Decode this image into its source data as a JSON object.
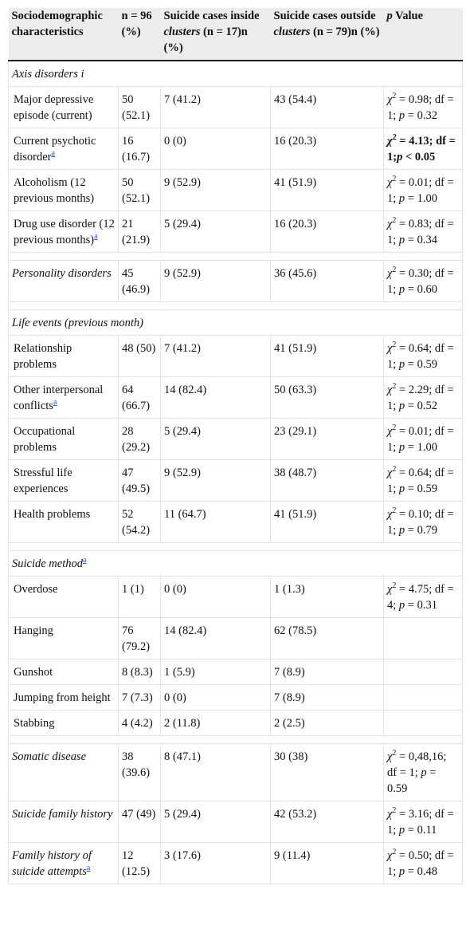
{
  "header": [
    [
      "Sociodemographic characteristics"
    ],
    [
      "n = 96 (%)"
    ],
    [
      "Suicide cases inside ",
      {
        "t": "clusters",
        "s": "i"
      },
      " (n = 17)n (%)"
    ],
    [
      "Suicide cases outside ",
      {
        "t": "clusters",
        "s": "i"
      },
      " (n = 79)n (%)"
    ],
    [
      {
        "t": "p",
        "s": "i"
      },
      " Value"
    ]
  ],
  "groups": [
    {
      "section": [
        {
          "t": "Axis disorders i",
          "s": "i"
        }
      ],
      "rows": [
        {
          "cells": [
            [
              "Major depressive episode (current)"
            ],
            "50 (52.1)",
            "7 (41.2)",
            "43 (54.4)",
            [
              {
                "t": "χ",
                "s": "i"
              },
              {
                "t": "2",
                "s": "sup"
              },
              " = 0.98; df = 1; ",
              {
                "t": "p",
                "s": "i"
              },
              " = 0.32"
            ]
          ]
        },
        {
          "cells": [
            [
              "Current psychotic disorder",
              {
                "t": "a",
                "s": "link"
              }
            ],
            "16 (16.7)",
            "0 (0)",
            "16 (20.3)",
            [
              {
                "t": "χ",
                "s": "b i"
              },
              {
                "t": "2",
                "s": "b sup"
              },
              {
                "t": " = 4.13; df = 1;",
                "s": "b"
              },
              {
                "t": "p",
                "s": "b i"
              },
              {
                "t": " < 0.05",
                "s": "b"
              }
            ]
          ]
        },
        {
          "cells": [
            [
              "Alcoholism (12 previous months)"
            ],
            "50 (52.1)",
            "9 (52.9)",
            "41 (51.9)",
            [
              {
                "t": "χ",
                "s": "i"
              },
              {
                "t": "2",
                "s": "sup"
              },
              " = 0.01; df = 1; ",
              {
                "t": "p",
                "s": "i"
              },
              " = 1.00"
            ]
          ]
        },
        {
          "cells": [
            [
              "Drug use disorder (12 previous months)",
              {
                "t": "a",
                "s": "link"
              }
            ],
            "21 (21.9)",
            "5 (29.4)",
            "16 (20.3)",
            [
              {
                "t": "χ",
                "s": "i"
              },
              {
                "t": "2",
                "s": "sup"
              },
              " = 0.83; df = 1; ",
              {
                "t": "p",
                "s": "i"
              },
              " = 0.34"
            ]
          ]
        }
      ]
    },
    {
      "rows": [
        {
          "cells": [
            [
              {
                "t": "Personality disorders",
                "s": "i"
              }
            ],
            "45 (46.9)",
            "9 (52.9)",
            "36 (45.6)",
            [
              {
                "t": "χ",
                "s": "i"
              },
              {
                "t": "2",
                "s": "sup"
              },
              " = 0.30; df = 1; ",
              {
                "t": "p",
                "s": "i"
              },
              " = 0.60"
            ]
          ]
        }
      ]
    },
    {
      "section": [
        {
          "t": "Life events (previous month)",
          "s": "i"
        }
      ],
      "rows": [
        {
          "cells": [
            [
              "Relationship problems"
            ],
            "48 (50)",
            "7 (41.2)",
            "41 (51.9)",
            [
              {
                "t": "χ",
                "s": "i"
              },
              {
                "t": "2",
                "s": "sup"
              },
              " = 0.64; df = 1; ",
              {
                "t": "p",
                "s": "i"
              },
              " = 0.59"
            ]
          ]
        },
        {
          "cells": [
            [
              "Other interpersonal conflicts",
              {
                "t": "a",
                "s": "link"
              }
            ],
            "64 (66.7)",
            "14 (82.4)",
            "50 (63.3)",
            [
              {
                "t": "χ",
                "s": "i"
              },
              {
                "t": "2",
                "s": "sup"
              },
              " = 2.29; df = 1; ",
              {
                "t": "p",
                "s": "i"
              },
              " = 0.52"
            ]
          ]
        },
        {
          "cells": [
            [
              "Occupational problems"
            ],
            "28 (29.2)",
            "5 (29.4)",
            "23 (29.1)",
            [
              {
                "t": "χ",
                "s": "i"
              },
              {
                "t": "2",
                "s": "sup"
              },
              " = 0.01; df = 1; ",
              {
                "t": "p",
                "s": "i"
              },
              " = 1.00"
            ]
          ]
        },
        {
          "cells": [
            [
              "Stressful life experiences"
            ],
            "47 (49.5)",
            "9 (52.9)",
            "38 (48.7)",
            [
              {
                "t": "χ",
                "s": "i"
              },
              {
                "t": "2",
                "s": "sup"
              },
              " = 0.64; df = 1; ",
              {
                "t": "p",
                "s": "i"
              },
              " = 0.59"
            ]
          ]
        },
        {
          "cells": [
            [
              "Health problems"
            ],
            "52 (54.2)",
            "11 (64.7)",
            "41 (51.9)",
            [
              {
                "t": "χ",
                "s": "i"
              },
              {
                "t": "2",
                "s": "sup"
              },
              " = 0.10; df = 1; ",
              {
                "t": "p",
                "s": "i"
              },
              " = 0.79"
            ]
          ]
        }
      ]
    },
    {
      "section": [
        {
          "t": "Suicide method",
          "s": "i"
        },
        {
          "t": "a",
          "s": "link"
        }
      ],
      "rows": [
        {
          "cells": [
            [
              "Overdose"
            ],
            "1 (1)",
            "0 (0)",
            "1 (1.3)",
            [
              {
                "t": "χ",
                "s": "i"
              },
              {
                "t": "2",
                "s": "sup"
              },
              " = 4.75; df = 4; ",
              {
                "t": "p",
                "s": "i"
              },
              " = 0.31"
            ]
          ]
        },
        {
          "cells": [
            [
              "Hanging"
            ],
            "76 (79.2)",
            "14 (82.4)",
            "62 (78.5)",
            null
          ]
        },
        {
          "cells": [
            [
              "Gunshot"
            ],
            "8 (8.3)",
            "1 (5.9)",
            "7 (8.9)",
            null
          ]
        },
        {
          "cells": [
            [
              "Jumping from height"
            ],
            "7 (7.3)",
            "0 (0)",
            "7 (8.9)",
            null
          ]
        },
        {
          "cells": [
            [
              "Stabbing"
            ],
            "4 (4.2)",
            "2 (11.8)",
            "2 (2.5)",
            null
          ]
        }
      ]
    },
    {
      "rows": [
        {
          "cells": [
            [
              {
                "t": "Somatic disease",
                "s": "i"
              }
            ],
            "38 (39.6)",
            "8 (47.1)",
            "30 (38)",
            [
              {
                "t": "χ",
                "s": "i"
              },
              {
                "t": "2",
                "s": "sup"
              },
              " = 0,48,16; df = 1; ",
              {
                "t": "p",
                "s": "i"
              },
              " = 0.59"
            ]
          ]
        },
        {
          "cells": [
            [
              {
                "t": "Suicide family history",
                "s": "i"
              }
            ],
            "47 (49)",
            "5 (29.4)",
            "42 (53.2)",
            [
              {
                "t": "χ",
                "s": "i"
              },
              {
                "t": "2",
                "s": "sup"
              },
              " = 3.16; df = 1; ",
              {
                "t": "p",
                "s": "i"
              },
              " = 0.11"
            ]
          ]
        },
        {
          "cells": [
            [
              {
                "t": "Family history of suicide attempts",
                "s": "i"
              },
              {
                "t": "a",
                "s": "link"
              }
            ],
            "12 (12.5)",
            "3 (17.6)",
            "9 (11.4)",
            [
              {
                "t": "χ",
                "s": "i"
              },
              {
                "t": "2",
                "s": "sup"
              },
              " = 0.50; df = 1; ",
              {
                "t": "p",
                "s": "i"
              },
              " = 0.48"
            ]
          ]
        }
      ]
    }
  ]
}
